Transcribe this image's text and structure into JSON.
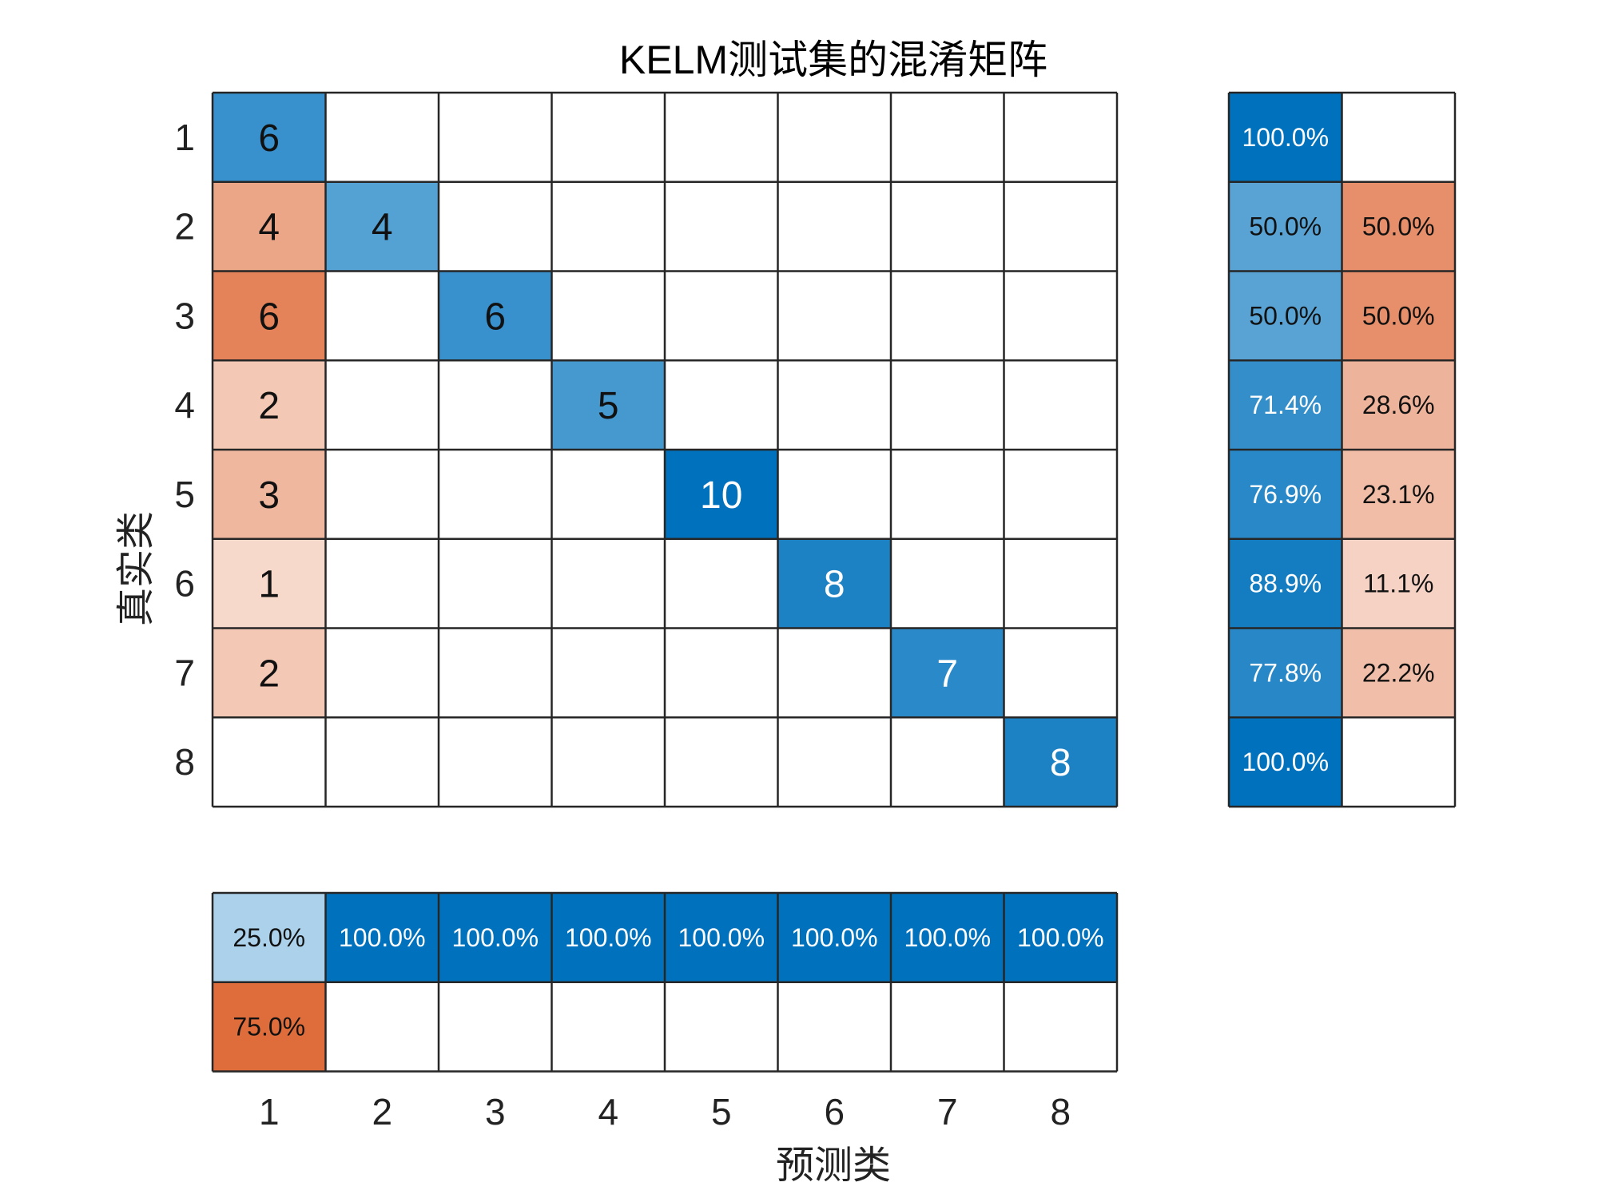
{
  "chart_data": {
    "type": "heatmap",
    "title": "KELM测试集的混淆矩阵",
    "xlabel": "预测类",
    "ylabel": "真实类",
    "classes": [
      "1",
      "2",
      "3",
      "4",
      "5",
      "6",
      "7",
      "8"
    ],
    "matrix": [
      [
        6,
        0,
        0,
        0,
        0,
        0,
        0,
        0
      ],
      [
        4,
        4,
        0,
        0,
        0,
        0,
        0,
        0
      ],
      [
        6,
        0,
        6,
        0,
        0,
        0,
        0,
        0
      ],
      [
        2,
        0,
        0,
        5,
        0,
        0,
        0,
        0
      ],
      [
        3,
        0,
        0,
        0,
        10,
        0,
        0,
        0
      ],
      [
        1,
        0,
        0,
        0,
        0,
        8,
        0,
        0
      ],
      [
        2,
        0,
        0,
        0,
        0,
        0,
        7,
        0
      ],
      [
        0,
        0,
        0,
        0,
        0,
        0,
        0,
        8
      ]
    ],
    "row_summary": {
      "correct": [
        "100.0%",
        "50.0%",
        "50.0%",
        "71.4%",
        "76.9%",
        "88.9%",
        "77.8%",
        "100.0%"
      ],
      "incorrect": [
        "",
        "50.0%",
        "50.0%",
        "28.6%",
        "23.1%",
        "11.1%",
        "22.2%",
        ""
      ]
    },
    "column_summary": {
      "correct": [
        "25.0%",
        "100.0%",
        "100.0%",
        "100.0%",
        "100.0%",
        "100.0%",
        "100.0%",
        "100.0%"
      ],
      "incorrect": [
        "75.0%",
        "",
        "",
        "",
        "",
        "",
        "",
        ""
      ]
    },
    "colors": {
      "correct": "#0072BD",
      "incorrect": "#D95319",
      "empty": "#FFFFFF",
      "grid": "#262626"
    }
  }
}
